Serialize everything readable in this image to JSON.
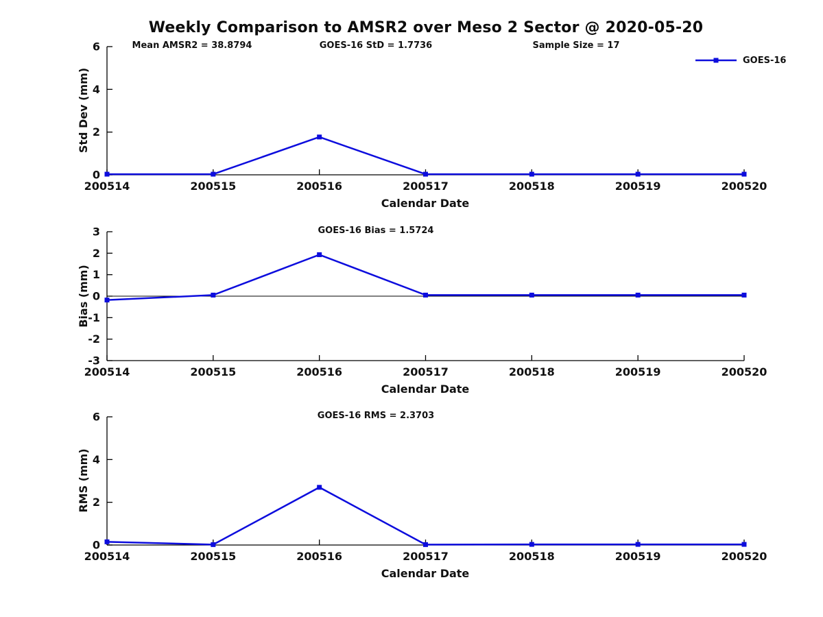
{
  "title": "Weekly Comparison to AMSR2 over Meso 2 Sector @ 2020-05-20",
  "legend": {
    "label": "GOES-16"
  },
  "accent_color": "#0d0ddd",
  "chart_data": [
    {
      "type": "line",
      "name": "std-dev-panel",
      "ylabel": "Std Dev (mm)",
      "xlabel": "Calendar Date",
      "ylim": [
        0,
        6
      ],
      "yticks": [
        0,
        2,
        4,
        6
      ],
      "zero_line": false,
      "grid": false,
      "categories": [
        "200514",
        "200515",
        "200516",
        "200517",
        "200518",
        "200519",
        "200520"
      ],
      "series": [
        {
          "name": "GOES-16",
          "color": "#0d0ddd",
          "marker": "square",
          "values": [
            0.03,
            0.03,
            1.77,
            0.03,
            0.03,
            0.03,
            0.03
          ]
        }
      ],
      "annotations": [
        "Mean AMSR2 = 38.8794",
        "GOES-16 StD = 1.7736",
        "Sample Size = 17"
      ]
    },
    {
      "type": "line",
      "name": "bias-panel",
      "ylabel": "Bias (mm)",
      "xlabel": "Calendar Date",
      "ylim": [
        -3,
        3
      ],
      "yticks": [
        -3,
        -2,
        -1,
        0,
        1,
        2,
        3
      ],
      "zero_line": true,
      "grid": false,
      "categories": [
        "200514",
        "200515",
        "200516",
        "200517",
        "200518",
        "200519",
        "200520"
      ],
      "series": [
        {
          "name": "GOES-16",
          "color": "#0d0ddd",
          "marker": "square",
          "values": [
            -0.18,
            0.05,
            1.93,
            0.05,
            0.05,
            0.05,
            0.05
          ]
        }
      ],
      "annotations": [
        "GOES-16 Bias  = 1.5724"
      ]
    },
    {
      "type": "line",
      "name": "rms-panel",
      "ylabel": "RMS (mm)",
      "xlabel": "Calendar Date",
      "ylim": [
        0,
        6
      ],
      "yticks": [
        0,
        2,
        4,
        6
      ],
      "zero_line": false,
      "grid": false,
      "categories": [
        "200514",
        "200515",
        "200516",
        "200517",
        "200518",
        "200519",
        "200520"
      ],
      "series": [
        {
          "name": "GOES-16",
          "color": "#0d0ddd",
          "marker": "square",
          "values": [
            0.15,
            0.02,
            2.7,
            0.02,
            0.03,
            0.03,
            0.03
          ]
        }
      ],
      "annotations": [
        "GOES-16 RMS = 2.3703"
      ]
    }
  ]
}
